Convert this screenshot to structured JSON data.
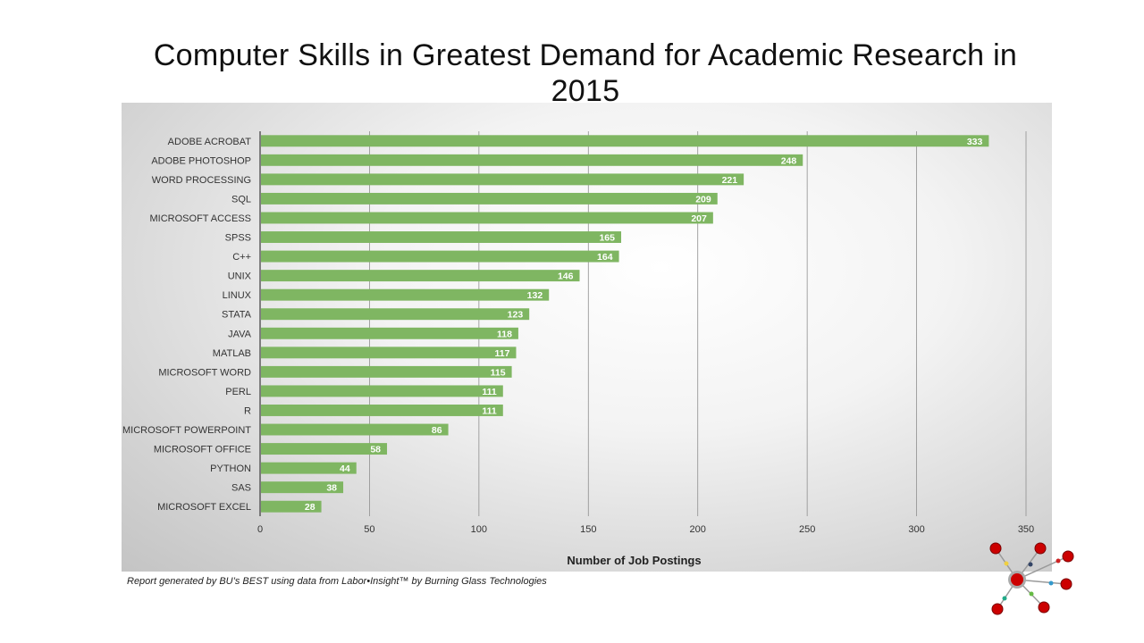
{
  "slide": {
    "title": "Computer Skills in Greatest Demand for Academic Research in 2015",
    "footnote": "Report generated by BU’s BEST using data from Labor•Insight™ by Burning Glass Technologies"
  },
  "colors": {
    "bar": "#7fb662",
    "gridline": "#8f8f8f",
    "axis": "#3a3a3a",
    "logo_node": "#cc0000"
  },
  "chart_data": {
    "type": "bar",
    "orientation": "horizontal",
    "categories": [
      "ADOBE ACROBAT",
      "ADOBE PHOTOSHOP",
      "WORD PROCESSING",
      "SQL",
      "MICROSOFT ACCESS",
      "SPSS",
      "C++",
      "UNIX",
      "LINUX",
      "STATA",
      "JAVA",
      "MATLAB",
      "MICROSOFT WORD",
      "PERL",
      "R",
      "MICROSOFT POWERPOINT",
      "MICROSOFT OFFICE",
      "PYTHON",
      "SAS",
      "MICROSOFT EXCEL"
    ],
    "values": [
      333,
      248,
      221,
      209,
      207,
      165,
      164,
      146,
      132,
      123,
      118,
      117,
      115,
      111,
      111,
      86,
      58,
      44,
      38,
      28
    ],
    "title": "Computer Skills in Greatest Demand for Academic Research in 2015",
    "xlabel": "Number of Job Postings",
    "ylabel": "",
    "xlim": [
      0,
      350
    ],
    "xticks": [
      0,
      50,
      100,
      150,
      200,
      250,
      300,
      350
    ],
    "grid": true,
    "data_labels": true
  }
}
